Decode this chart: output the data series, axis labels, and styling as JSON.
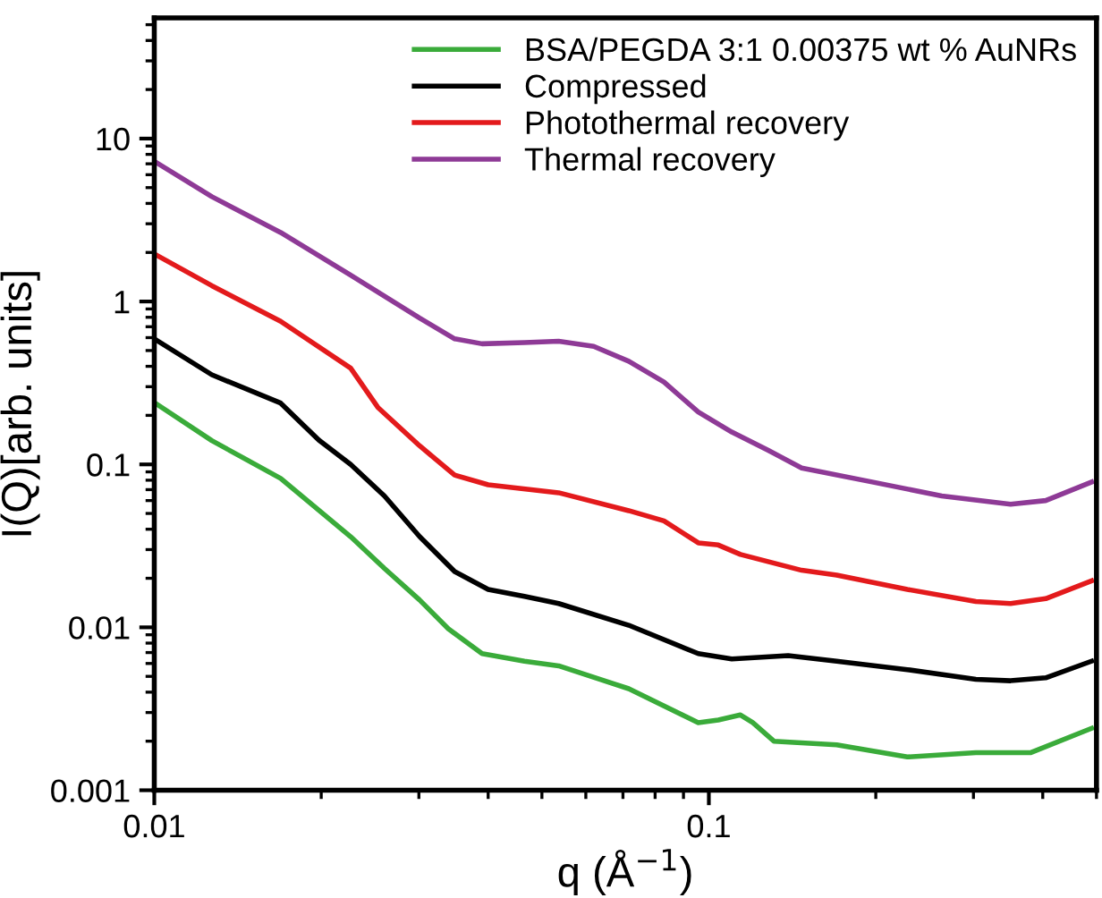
{
  "chart_data": {
    "type": "line",
    "xlabel": "q (Å$^{−1}$)",
    "ylabel": "I(Q)[arb. units]",
    "log": "xy",
    "xlim": [
      0.01,
      0.5
    ],
    "ylim": [
      0.001,
      55
    ],
    "xticks": [
      0.01,
      0.1
    ],
    "yticks": [
      0.001,
      0.01,
      0.1,
      1,
      10
    ],
    "grid": false,
    "legend": "top right",
    "marker": "none",
    "line_style": "solid",
    "series": [
      {
        "name": "BSA/PEGDA 3:1 0.00375 wt % AuNRs",
        "color": "#3aab3a",
        "x": [
          0.01,
          0.0127,
          0.0169,
          0.0226,
          0.026,
          0.0301,
          0.0339,
          0.039,
          0.0465,
          0.0536,
          0.0717,
          0.0957,
          0.104,
          0.114,
          0.12,
          0.131,
          0.17,
          0.228,
          0.303,
          0.38,
          0.49
        ],
        "values": [
          0.24,
          0.14,
          0.082,
          0.036,
          0.023,
          0.0147,
          0.0098,
          0.0069,
          0.0062,
          0.0058,
          0.0042,
          0.0026,
          0.0027,
          0.0029,
          0.0026,
          0.002,
          0.0019,
          0.0016,
          0.0017,
          0.0017,
          0.0024
        ]
      },
      {
        "name": "Compressed",
        "color": "#000000",
        "x": [
          0.01,
          0.0127,
          0.0169,
          0.0198,
          0.0226,
          0.026,
          0.0301,
          0.0348,
          0.04,
          0.0465,
          0.0536,
          0.0717,
          0.0957,
          0.11,
          0.139,
          0.17,
          0.228,
          0.303,
          0.35,
          0.405,
          0.49
        ],
        "values": [
          0.59,
          0.355,
          0.238,
          0.141,
          0.1,
          0.064,
          0.036,
          0.022,
          0.0171,
          0.0155,
          0.014,
          0.0103,
          0.0069,
          0.0064,
          0.0067,
          0.0062,
          0.0055,
          0.0048,
          0.0047,
          0.0049,
          0.0062
        ]
      },
      {
        "name": "Photothermal recovery",
        "color": "#e31a1c",
        "x": [
          0.01,
          0.0127,
          0.0169,
          0.0226,
          0.0253,
          0.0301,
          0.0348,
          0.04,
          0.0536,
          0.0717,
          0.083,
          0.0957,
          0.104,
          0.114,
          0.147,
          0.17,
          0.228,
          0.303,
          0.35,
          0.405,
          0.49
        ],
        "values": [
          1.96,
          1.25,
          0.755,
          0.39,
          0.224,
          0.13,
          0.086,
          0.075,
          0.067,
          0.052,
          0.045,
          0.033,
          0.032,
          0.028,
          0.0224,
          0.0209,
          0.0171,
          0.0144,
          0.014,
          0.015,
          0.0193
        ]
      },
      {
        "name": "Thermal recovery",
        "color": "#8e3a96",
        "x": [
          0.01,
          0.0127,
          0.0169,
          0.0226,
          0.0301,
          0.0348,
          0.039,
          0.0465,
          0.0536,
          0.062,
          0.0717,
          0.083,
          0.0957,
          0.11,
          0.128,
          0.147,
          0.197,
          0.263,
          0.35,
          0.405,
          0.49
        ],
        "values": [
          7.25,
          4.4,
          2.65,
          1.45,
          0.79,
          0.59,
          0.55,
          0.56,
          0.57,
          0.53,
          0.43,
          0.32,
          0.21,
          0.158,
          0.122,
          0.095,
          0.078,
          0.064,
          0.057,
          0.06,
          0.078
        ]
      }
    ]
  }
}
